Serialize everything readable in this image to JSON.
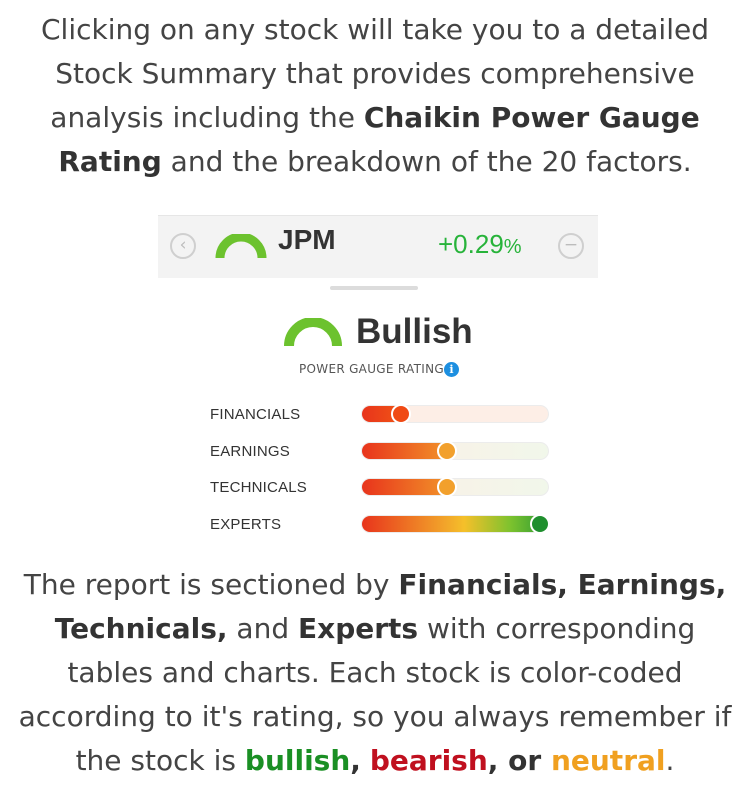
{
  "intro": {
    "part1": "Clicking on any stock will take you to a detailed Stock Summary that provides comprehensive analysis including the ",
    "bold": "Chaikin Power Gauge Rating",
    "part2": " and the breakdown of the 20 factors."
  },
  "ticker": {
    "prev_icon": "chevron-left-circle-icon",
    "prev_glyph": "‹",
    "symbol": "JPM",
    "change_value": "+0.29",
    "change_unit": "%",
    "collapse_icon": "minus-circle-icon",
    "collapse_glyph": "−",
    "gauge_color": "#6cc22e"
  },
  "rating": {
    "label": "Bullish",
    "subtitle": "POWER GAUGE RATING",
    "info_glyph": "i",
    "gauge_color": "#6cc22e"
  },
  "factors": [
    {
      "label": "FINANCIALS",
      "level": 0.25,
      "knob_color": "#f04a14",
      "track_tint": "#fdeee6"
    },
    {
      "label": "EARNINGS",
      "level": 0.5,
      "knob_color": "#f2a02c",
      "track_tint": "#f1f7ea"
    },
    {
      "label": "TECHNICALS",
      "level": 0.5,
      "knob_color": "#f2a02c",
      "track_tint": "#f1f7ea"
    },
    {
      "label": "EXPERTS",
      "level": 1.0,
      "knob_color": "#1f8f2e",
      "track_tint": "#f1f7ea"
    }
  ],
  "outro": {
    "t1": "The report is sectioned by ",
    "b1": "Financials, Earnings, Technicals,",
    "t2": " and ",
    "b2": "Experts",
    "t3": " with corresponding tables and charts.  Each stock is color-coded according to it's rating, so you always remember if the stock is ",
    "bullish": "bullish",
    "c1": ",",
    "bearish": "bearish",
    "c2": ", or ",
    "neutral": "neutral",
    "end": "."
  },
  "colors": {
    "bullish": "#1a8f24",
    "bearish": "#c0101f",
    "neutral": "#f0a020",
    "change_positive": "#27b33a"
  }
}
